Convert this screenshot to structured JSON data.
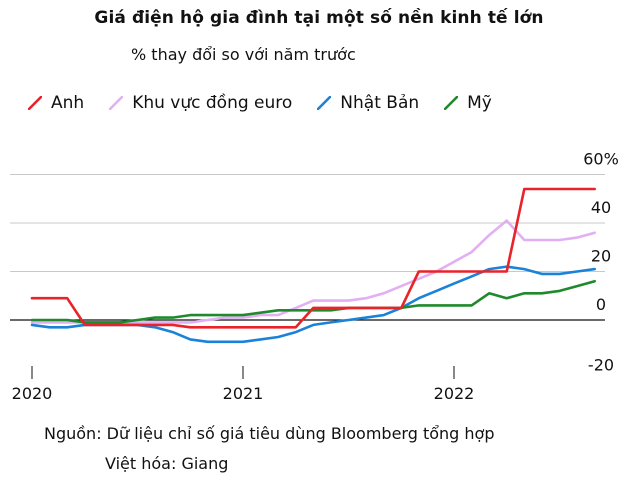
{
  "title": "Giá điện hộ gia đình tại một số nền kinh tế lớn",
  "subtitle": "% thay đổi so với năm trước",
  "source": "Nguồn: Dữ liệu chỉ số giá tiêu dùng Bloomberg tổng hợp",
  "credit": "Việt hóa: Giang",
  "chart_data": {
    "type": "line",
    "title": "Giá điện hộ gia đình tại một số nền kinh tế lớn",
    "subtitle": "% thay đổi so với năm trước",
    "xlabel": "",
    "ylabel": "",
    "x_ticks": [
      "2020",
      "2021",
      "2022"
    ],
    "y_ticks": [
      "60%",
      "40",
      "20",
      "0",
      "-20"
    ],
    "y_tick_values": [
      60,
      40,
      20,
      0,
      -20
    ],
    "ylim": [
      -20,
      60
    ],
    "grid": "horizontal",
    "legend_placement": "top",
    "x": [
      "2020-01",
      "2020-02",
      "2020-03",
      "2020-04",
      "2020-05",
      "2020-06",
      "2020-07",
      "2020-08",
      "2020-09",
      "2020-10",
      "2020-11",
      "2020-12",
      "2021-01",
      "2021-02",
      "2021-03",
      "2021-04",
      "2021-05",
      "2021-06",
      "2021-07",
      "2021-08",
      "2021-09",
      "2021-10",
      "2021-11",
      "2021-12",
      "2022-01",
      "2022-02",
      "2022-03",
      "2022-04",
      "2022-05",
      "2022-06",
      "2022-07",
      "2022-08",
      "2022-09"
    ],
    "series": [
      {
        "name": "Anh",
        "color": "#e8232a",
        "values": [
          9,
          9,
          9,
          -2,
          -2,
          -2,
          -2,
          -2,
          -2,
          -3,
          -3,
          -3,
          -3,
          -3,
          -3,
          -3,
          5,
          5,
          5,
          5,
          5,
          5,
          20,
          20,
          20,
          20,
          20,
          20,
          54,
          54,
          54,
          54,
          54
        ]
      },
      {
        "name": "Khu vực đồng euro",
        "color": "#e2b0f2",
        "values": [
          -1,
          -1,
          -1,
          -1,
          -1,
          -1,
          -1,
          -1,
          -1,
          -1,
          0,
          1,
          1,
          2,
          2,
          5,
          8,
          8,
          8,
          9,
          11,
          14,
          17,
          20,
          24,
          28,
          35,
          41,
          33,
          33,
          33,
          34,
          36
        ]
      },
      {
        "name": "Nhật Bản",
        "color": "#1a82d8",
        "values": [
          -2,
          -3,
          -3,
          -2,
          -2,
          -2,
          -2,
          -3,
          -5,
          -8,
          -9,
          -9,
          -9,
          -8,
          -7,
          -5,
          -2,
          -1,
          0,
          1,
          2,
          5,
          9,
          12,
          15,
          18,
          21,
          22,
          21,
          19,
          19,
          20,
          21
        ]
      },
      {
        "name": "Mỹ",
        "color": "#1f8a2b",
        "values": [
          0,
          0,
          0,
          -1,
          -1,
          -1,
          0,
          1,
          1,
          2,
          2,
          2,
          2,
          3,
          4,
          4,
          4,
          4,
          5,
          5,
          5,
          5,
          6,
          6,
          6,
          6,
          11,
          9,
          11,
          11,
          12,
          14,
          16
        ]
      }
    ]
  }
}
